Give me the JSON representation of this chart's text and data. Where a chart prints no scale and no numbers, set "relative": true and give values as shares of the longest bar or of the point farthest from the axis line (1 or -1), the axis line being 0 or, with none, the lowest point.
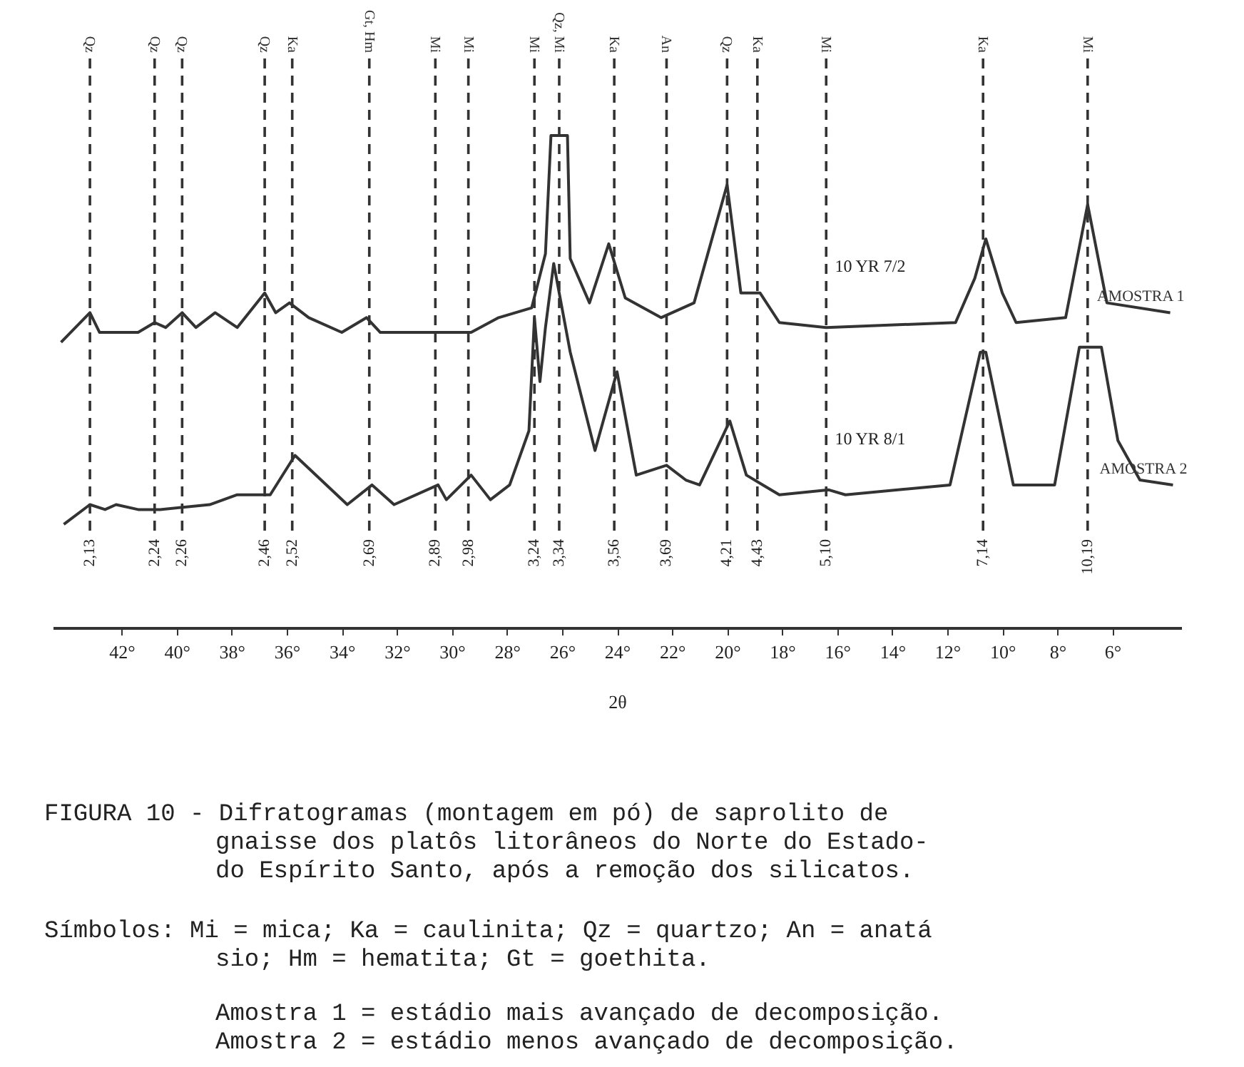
{
  "chart_data": {
    "type": "line",
    "relative": true,
    "xlabel": "2θ",
    "xlim": [
      44.5,
      3.5
    ],
    "xticks": [
      {
        "value": 42,
        "label": "42°"
      },
      {
        "value": 40,
        "label": "40°"
      },
      {
        "value": 38,
        "label": "38°"
      },
      {
        "value": 36,
        "label": "36°"
      },
      {
        "value": 34,
        "label": "34°"
      },
      {
        "value": 32,
        "label": "32°"
      },
      {
        "value": 30,
        "label": "30°"
      },
      {
        "value": 28,
        "label": "28°"
      },
      {
        "value": 26,
        "label": "26°"
      },
      {
        "value": 24,
        "label": "24°"
      },
      {
        "value": 22,
        "label": "22°"
      },
      {
        "value": 20,
        "label": "20°"
      },
      {
        "value": 18,
        "label": "18°"
      },
      {
        "value": 16,
        "label": "16°"
      },
      {
        "value": 14,
        "label": "14°"
      },
      {
        "value": 12,
        "label": "12°"
      },
      {
        "value": 10,
        "label": "10°"
      },
      {
        "value": 8,
        "label": "8°"
      },
      {
        "value": 6,
        "label": "6°"
      }
    ],
    "grid": false,
    "marker": "none",
    "line_style": "solid",
    "series": [
      {
        "name": "AMOSTRA 1",
        "color": "#333333",
        "x": [
          44.2,
          43.15,
          42.8,
          41.9,
          41.4,
          40.8,
          40.4,
          39.8,
          39.3,
          38.6,
          37.8,
          36.8,
          36.4,
          35.9,
          35.2,
          34.0,
          33.1,
          32.6,
          31.0,
          29.3,
          28.3,
          27.1,
          26.6,
          26.4,
          25.8,
          25.7,
          25.0,
          24.3,
          23.7,
          22.4,
          21.2,
          20.0,
          19.5,
          18.8,
          18.1,
          16.4,
          11.7,
          11.0,
          10.6,
          10.0,
          9.5,
          7.7,
          6.9,
          6.2,
          3.9
        ],
        "values": [
          0.58,
          0.64,
          0.6,
          0.6,
          0.6,
          0.62,
          0.61,
          0.64,
          0.61,
          0.64,
          0.61,
          0.68,
          0.64,
          0.66,
          0.63,
          0.6,
          0.63,
          0.6,
          0.6,
          0.6,
          0.63,
          0.65,
          0.76,
          1.0,
          1.0,
          0.75,
          0.66,
          0.78,
          0.67,
          0.63,
          0.66,
          0.9,
          0.68,
          0.68,
          0.62,
          0.61,
          0.62,
          0.71,
          0.79,
          0.68,
          0.62,
          0.63,
          0.86,
          0.66,
          0.64
        ]
      },
      {
        "name": "AMOSTRA 2",
        "color": "#333333",
        "x": [
          44.1,
          43.15,
          42.6,
          42.2,
          41.4,
          40.6,
          38.8,
          37.8,
          36.6,
          35.7,
          33.8,
          32.9,
          32.1,
          30.5,
          30.2,
          29.3,
          28.6,
          27.9,
          27.2,
          27.0,
          26.8,
          26.6,
          26.3,
          25.7,
          24.8,
          24.0,
          23.3,
          22.2,
          21.5,
          21.0,
          19.9,
          19.3,
          18.7,
          18.1,
          16.3,
          15.7,
          11.9,
          10.8,
          10.6,
          9.6,
          8.1,
          7.2,
          6.4,
          5.8,
          5.0,
          3.8
        ],
        "values": [
          0.21,
          0.25,
          0.24,
          0.25,
          0.24,
          0.24,
          0.25,
          0.27,
          0.27,
          0.35,
          0.25,
          0.29,
          0.25,
          0.29,
          0.26,
          0.31,
          0.26,
          0.29,
          0.4,
          0.63,
          0.5,
          0.61,
          0.74,
          0.56,
          0.36,
          0.52,
          0.31,
          0.33,
          0.3,
          0.29,
          0.42,
          0.31,
          0.29,
          0.27,
          0.28,
          0.27,
          0.29,
          0.56,
          0.56,
          0.29,
          0.29,
          0.57,
          0.57,
          0.38,
          0.3,
          0.29
        ]
      }
    ],
    "ref_lines": [
      {
        "axis": "x",
        "value": 43.15,
        "label": "Qz",
        "line_style": "dashed",
        "color": "#333333"
      },
      {
        "axis": "x",
        "value": 40.8,
        "label": "Qz",
        "line_style": "dashed",
        "color": "#333333"
      },
      {
        "axis": "x",
        "value": 39.8,
        "label": "Qz",
        "line_style": "dashed",
        "color": "#333333"
      },
      {
        "axis": "x",
        "value": 36.8,
        "label": "Qz",
        "line_style": "dashed",
        "color": "#333333"
      },
      {
        "axis": "x",
        "value": 35.8,
        "label": "Ka",
        "line_style": "dashed",
        "color": "#333333"
      },
      {
        "axis": "x",
        "value": 33.0,
        "label": "Gt, Hm",
        "line_style": "dashed",
        "color": "#333333"
      },
      {
        "axis": "x",
        "value": 30.6,
        "label": "Mi",
        "line_style": "dashed",
        "color": "#333333"
      },
      {
        "axis": "x",
        "value": 29.4,
        "label": "Mi",
        "line_style": "dashed",
        "color": "#333333"
      },
      {
        "axis": "x",
        "value": 27.0,
        "label": "Mi",
        "line_style": "dashed",
        "color": "#333333"
      },
      {
        "axis": "x",
        "value": 26.1,
        "label": "Qz, Mi",
        "line_style": "dashed",
        "color": "#333333"
      },
      {
        "axis": "x",
        "value": 24.1,
        "label": "Ka",
        "line_style": "dashed",
        "color": "#333333"
      },
      {
        "axis": "x",
        "value": 22.2,
        "label": "An",
        "line_style": "dashed",
        "color": "#333333"
      },
      {
        "axis": "x",
        "value": 20.0,
        "label": "Qz",
        "line_style": "dashed",
        "color": "#333333"
      },
      {
        "axis": "x",
        "value": 18.9,
        "label": "Ka",
        "line_style": "dashed",
        "color": "#333333"
      },
      {
        "axis": "x",
        "value": 16.4,
        "label": "Mi",
        "line_style": "dashed",
        "color": "#333333"
      },
      {
        "axis": "x",
        "value": 10.7,
        "label": "Ka",
        "line_style": "dashed",
        "color": "#333333"
      },
      {
        "axis": "x",
        "value": 6.9,
        "label": "Mi",
        "line_style": "dashed",
        "color": "#333333"
      }
    ],
    "annotations": [
      "2,13",
      "2,24",
      "2,26",
      "2,46",
      "2,52",
      "2,69",
      "2,89",
      "2,98",
      "3,24",
      "3,34",
      "3,56",
      "3,69",
      "4,21",
      "4,43",
      "5,10",
      "7,14",
      "10,19",
      "10 YR 7/2",
      "10 YR 8/1",
      "FIGURA 10 - Difratogramas (montagem em pó) de saprolito de",
      "gnaisse dos platôs litorâneos do Norte do Estado-",
      "do Espírito Santo, após a remoção dos silicatos.",
      "Símbolos: Mi = mica; Ka = caulinita; Qz = quartzo; An = anatá",
      "sio; Hm = hematita; Gt = goethita.",
      "Amostra 1 = estádio mais avançado de decomposição.",
      "Amostra 2 = estádio menos avançado de decomposição."
    ]
  }
}
